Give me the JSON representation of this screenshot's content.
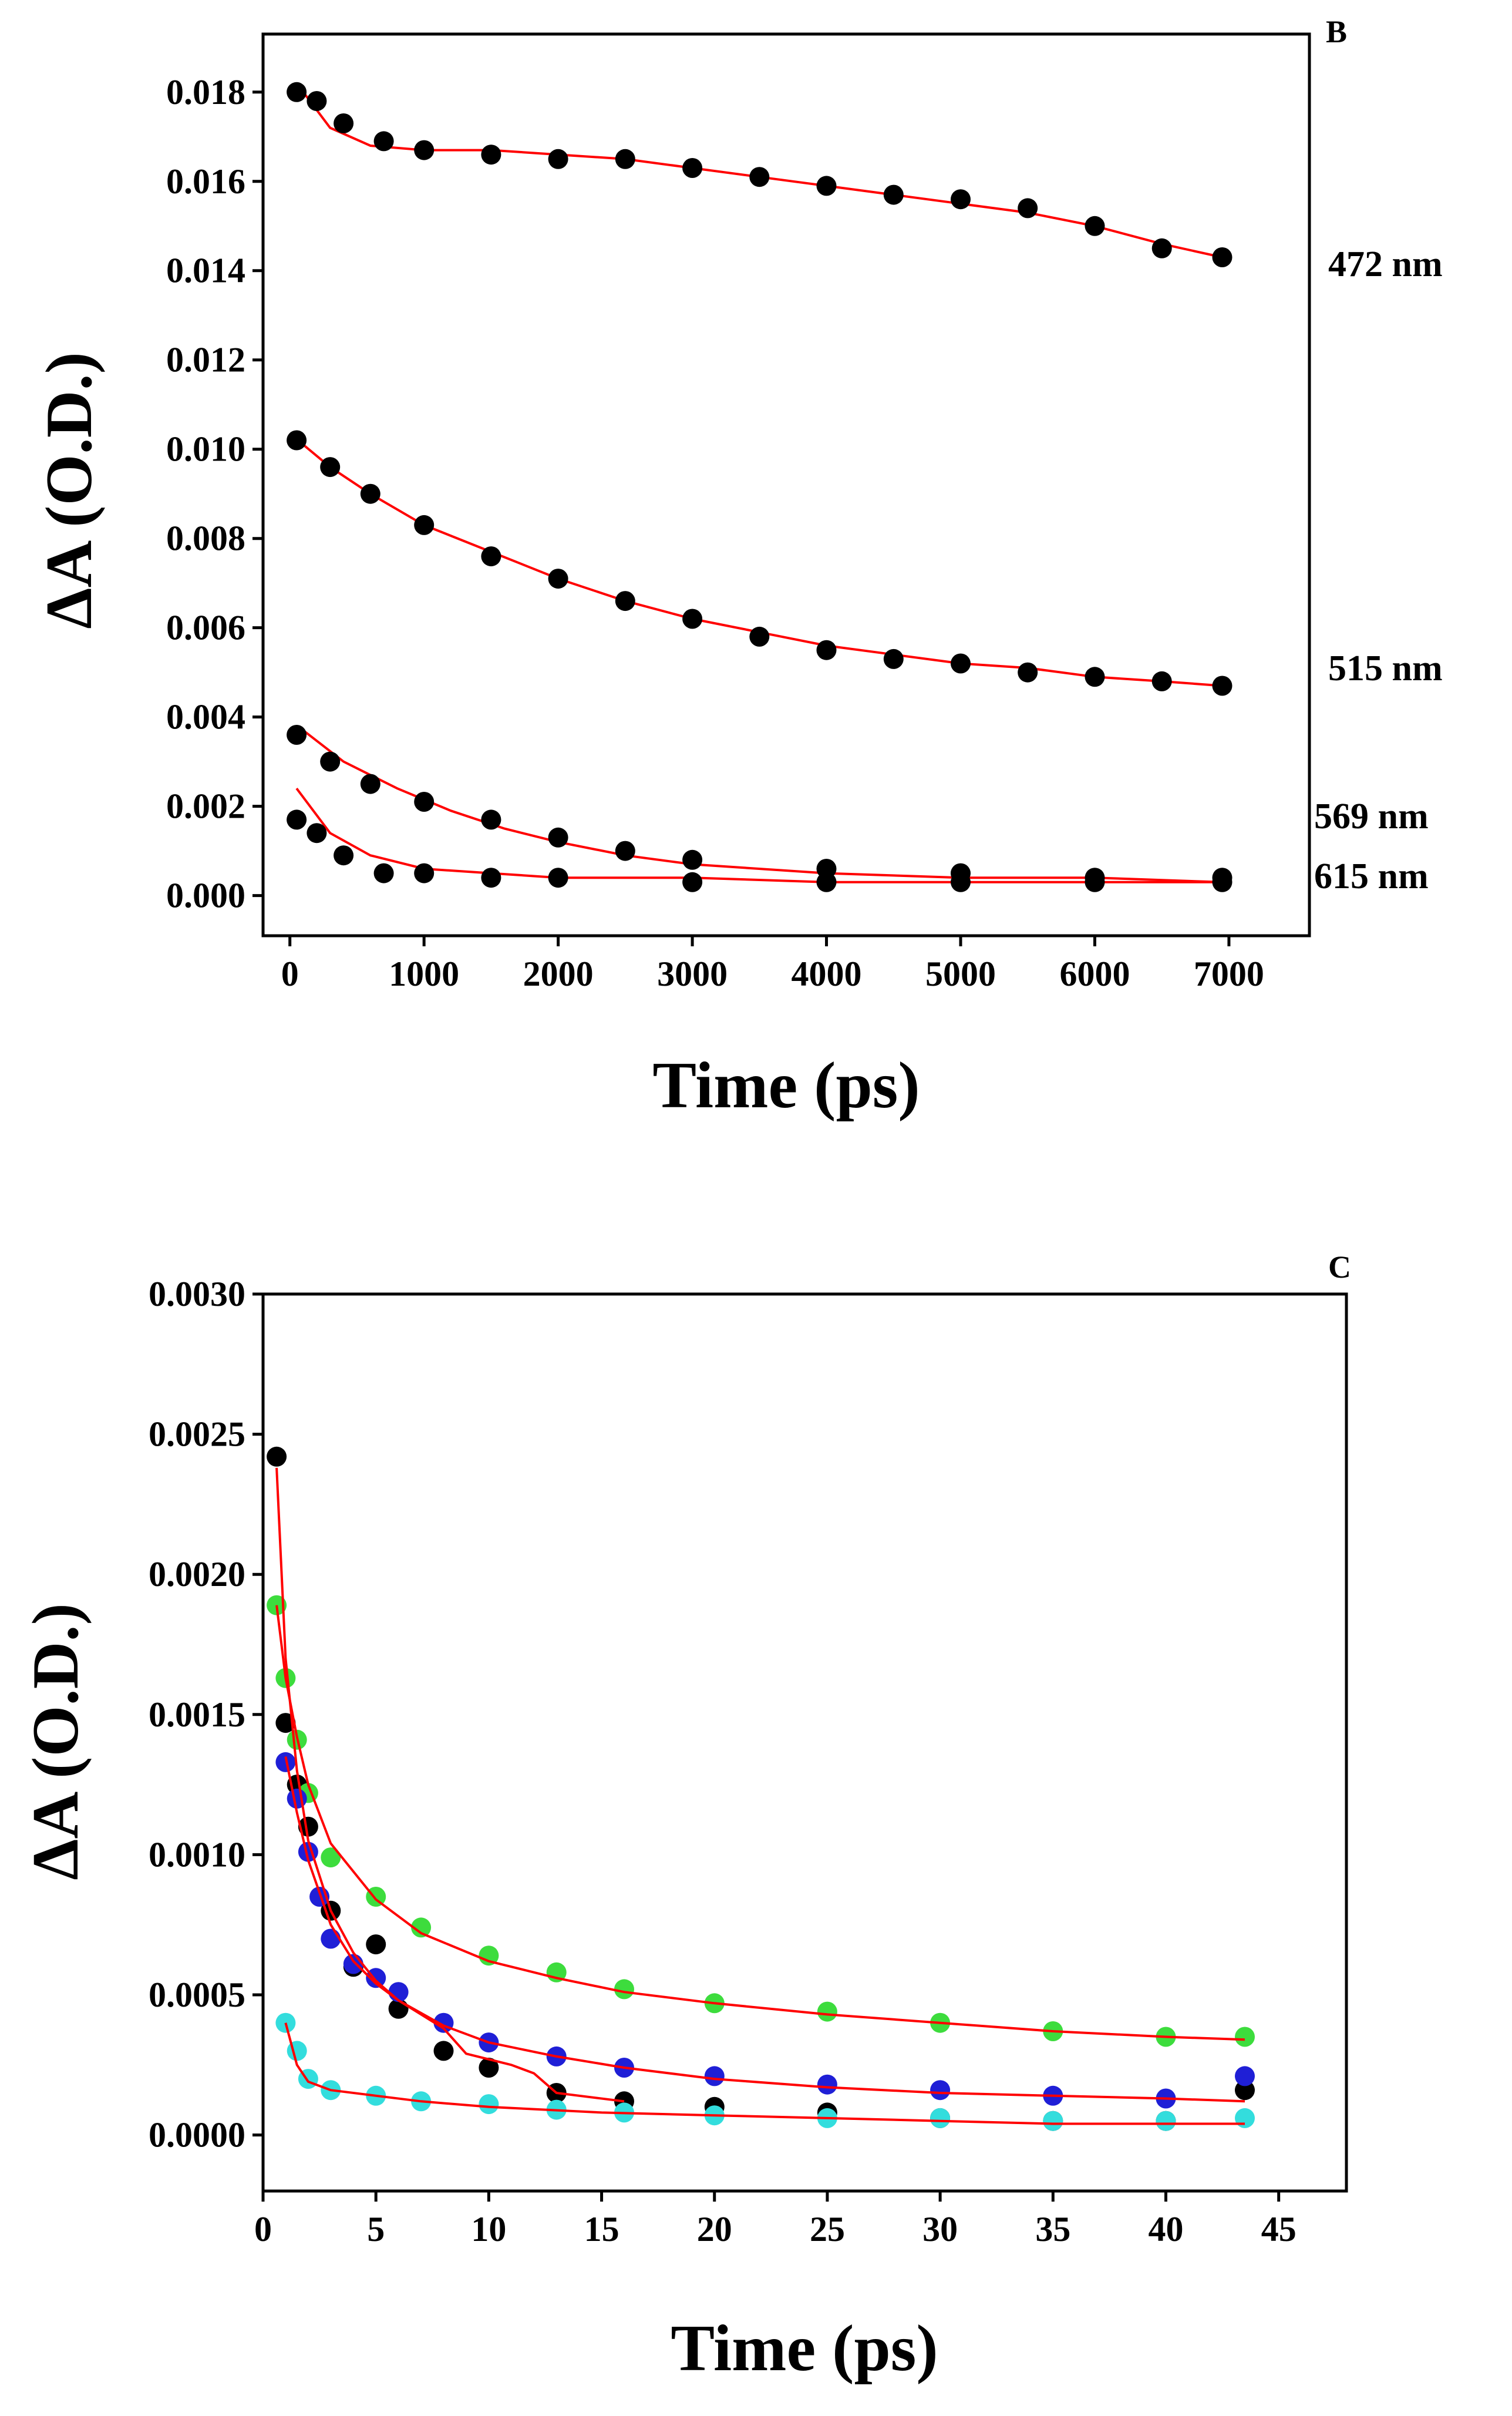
{
  "chart_data": [
    {
      "panel": "B",
      "type": "scatter",
      "xlabel": "Time (ps)",
      "ylabel": "ΔA (O.D.)",
      "xlim": [
        -200,
        7600
      ],
      "ylim": [
        -0.0009,
        0.0193
      ],
      "xticks": [
        "0",
        "1000",
        "2000",
        "3000",
        "4000",
        "5000",
        "6000",
        "7000"
      ],
      "yticks": [
        "0.000",
        "0.002",
        "0.004",
        "0.006",
        "0.008",
        "0.010",
        "0.012",
        "0.014",
        "0.016",
        "0.018"
      ],
      "point_color": "#000000",
      "fit_color": "#ff0000",
      "series": [
        {
          "name": "472 nm",
          "x": [
            50,
            200,
            400,
            700,
            1000,
            1500,
            2000,
            2500,
            3000,
            3500,
            4000,
            4500,
            5000,
            5500,
            6000,
            6500,
            6950
          ],
          "values": [
            0.018,
            0.0178,
            0.0173,
            0.0169,
            0.0167,
            0.0166,
            0.0165,
            0.0165,
            0.0163,
            0.0161,
            0.0159,
            0.0157,
            0.0156,
            0.0154,
            0.015,
            0.0145,
            0.0143
          ]
        },
        {
          "name": "515 nm",
          "x": [
            50,
            300,
            600,
            1000,
            1500,
            2000,
            2500,
            3000,
            3500,
            4000,
            4500,
            5000,
            5500,
            6000,
            6500,
            6950
          ],
          "values": [
            0.0102,
            0.0096,
            0.009,
            0.0083,
            0.0076,
            0.0071,
            0.0066,
            0.0062,
            0.0058,
            0.0055,
            0.0053,
            0.0052,
            0.005,
            0.0049,
            0.0048,
            0.0047
          ]
        },
        {
          "name": "569 nm",
          "x": [
            50,
            300,
            600,
            1000,
            1500,
            2000,
            2500,
            3000,
            4000,
            5000,
            6000,
            6950
          ],
          "values": [
            0.0036,
            0.003,
            0.0025,
            0.0021,
            0.0017,
            0.0013,
            0.001,
            0.0008,
            0.0006,
            0.0005,
            0.0004,
            0.0004
          ]
        },
        {
          "name": "615 nm",
          "x": [
            50,
            200,
            400,
            700,
            1000,
            1500,
            2000,
            3000,
            4000,
            5000,
            6000,
            6950
          ],
          "values": [
            0.0017,
            0.0014,
            0.0009,
            0.0005,
            0.0005,
            0.0004,
            0.0004,
            0.0003,
            0.0003,
            0.0003,
            0.0003,
            0.0003
          ]
        }
      ],
      "fits": [
        {
          "name": "472 nm fit",
          "x": [
            100,
            300,
            600,
            1000,
            1500,
            2000,
            2500,
            3000,
            3500,
            4000,
            4500,
            5000,
            5500,
            6000,
            6500,
            6950
          ],
          "values": [
            0.018,
            0.0172,
            0.0168,
            0.0167,
            0.0167,
            0.0166,
            0.0165,
            0.0163,
            0.0161,
            0.0159,
            0.0157,
            0.0155,
            0.0153,
            0.015,
            0.0146,
            0.0143
          ]
        },
        {
          "name": "515 nm fit",
          "x": [
            100,
            300,
            600,
            1000,
            1500,
            2000,
            2500,
            3000,
            3500,
            4000,
            4500,
            5000,
            5500,
            6000,
            6500,
            6950
          ],
          "values": [
            0.0101,
            0.0096,
            0.009,
            0.0083,
            0.0077,
            0.0071,
            0.0066,
            0.0062,
            0.0059,
            0.0056,
            0.0054,
            0.0052,
            0.0051,
            0.0049,
            0.0048,
            0.0047
          ]
        },
        {
          "name": "569 nm fit",
          "x": [
            100,
            400,
            800,
            1200,
            1600,
            2000,
            2500,
            3000,
            4000,
            5000,
            6000,
            6950
          ],
          "values": [
            0.0037,
            0.003,
            0.0024,
            0.0019,
            0.0015,
            0.0012,
            0.0009,
            0.0007,
            0.0005,
            0.0004,
            0.0004,
            0.0003
          ]
        },
        {
          "name": "615 nm fit",
          "x": [
            50,
            300,
            600,
            1000,
            1500,
            2000,
            3000,
            4000,
            5000,
            6000,
            6950
          ],
          "values": [
            0.0024,
            0.0014,
            0.0009,
            0.0006,
            0.0005,
            0.0004,
            0.0004,
            0.0003,
            0.0003,
            0.0003,
            0.0003
          ]
        }
      ]
    },
    {
      "panel": "C",
      "type": "scatter",
      "xlabel": "Time (ps)",
      "ylabel": "ΔA (O.D.)",
      "xlim": [
        0,
        48
      ],
      "ylim": [
        -0.0002,
        0.003
      ],
      "xticks": [
        "0",
        "5",
        "10",
        "15",
        "20",
        "25",
        "30",
        "35",
        "40",
        "45"
      ],
      "yticks": [
        "0.0000",
        "0.0005",
        "0.0010",
        "0.0015",
        "0.0020",
        "0.0025",
        "0.0030"
      ],
      "series": [
        {
          "name": "black",
          "color": "#000000",
          "x": [
            0.6,
            1.0,
            1.5,
            2.0,
            3.0,
            4.0,
            5.0,
            6.0,
            8.0,
            10.0,
            13.0,
            16.0,
            20.0,
            25.0,
            30.0,
            35.0,
            40.0,
            43.5
          ],
          "values": [
            0.00242,
            0.00147,
            0.00125,
            0.0011,
            0.0008,
            0.0006,
            0.00068,
            0.00045,
            0.0003,
            0.00024,
            0.00015,
            0.00012,
            0.0001,
            8e-05,
            6e-05,
            5e-05,
            5e-05,
            0.00016
          ]
        },
        {
          "name": "green",
          "color": "#3ddc3d",
          "x": [
            0.6,
            1.0,
            1.5,
            2.0,
            3.0,
            5.0,
            7.0,
            10.0,
            13.0,
            16.0,
            20.0,
            25.0,
            30.0,
            35.0,
            40.0,
            43.5
          ],
          "values": [
            0.00189,
            0.00163,
            0.00141,
            0.00122,
            0.00099,
            0.00085,
            0.00074,
            0.00064,
            0.00058,
            0.00052,
            0.00047,
            0.00044,
            0.0004,
            0.00037,
            0.00035,
            0.00035
          ]
        },
        {
          "name": "blue",
          "color": "#1f1fd6",
          "x": [
            1.0,
            1.5,
            2.0,
            2.5,
            3.0,
            4.0,
            5.0,
            6.0,
            8.0,
            10.0,
            13.0,
            16.0,
            20.0,
            25.0,
            30.0,
            35.0,
            40.0,
            43.5
          ],
          "values": [
            0.00133,
            0.0012,
            0.00101,
            0.00085,
            0.0007,
            0.00061,
            0.00056,
            0.00051,
            0.0004,
            0.00033,
            0.00028,
            0.00024,
            0.00021,
            0.00018,
            0.00016,
            0.00014,
            0.00013,
            0.00021
          ]
        },
        {
          "name": "cyan",
          "color": "#33dddd",
          "x": [
            1.0,
            1.5,
            2.0,
            3.0,
            5.0,
            7.0,
            10.0,
            13.0,
            16.0,
            20.0,
            25.0,
            30.0,
            35.0,
            40.0,
            43.5
          ],
          "values": [
            0.0004,
            0.0003,
            0.0002,
            0.00016,
            0.00014,
            0.00012,
            0.00011,
            9e-05,
            8e-05,
            7e-05,
            6e-05,
            6e-05,
            5e-05,
            5e-05,
            6e-05
          ]
        }
      ],
      "fits": [
        {
          "name": "black fit",
          "x": [
            0.6,
            1.0,
            1.5,
            2.0,
            3.0,
            4.0,
            5.0,
            6.0,
            8.0,
            9.0,
            11.0,
            12.0,
            13.0,
            16.0
          ],
          "values": [
            0.00238,
            0.0017,
            0.0013,
            0.00105,
            0.0008,
            0.00065,
            0.00055,
            0.00048,
            0.00038,
            0.00029,
            0.00025,
            0.00022,
            0.00015,
            0.00012
          ]
        },
        {
          "name": "green fit",
          "x": [
            0.6,
            1.0,
            1.5,
            2.0,
            3.0,
            5.0,
            7.0,
            10.0,
            13.0,
            16.0,
            20.0,
            25.0,
            30.0,
            35.0,
            40.0,
            43.5
          ],
          "values": [
            0.00189,
            0.00163,
            0.00142,
            0.00125,
            0.00104,
            0.00084,
            0.00072,
            0.00062,
            0.00056,
            0.00051,
            0.00047,
            0.00043,
            0.0004,
            0.00037,
            0.00035,
            0.00034
          ]
        },
        {
          "name": "blue fit",
          "x": [
            1.0,
            1.5,
            2.0,
            3.0,
            4.0,
            5.0,
            6.0,
            8.0,
            10.0,
            13.0,
            16.0,
            20.0,
            25.0,
            30.0,
            35.0,
            40.0,
            43.5
          ],
          "values": [
            0.00135,
            0.00115,
            0.00098,
            0.00075,
            0.00062,
            0.00054,
            0.00048,
            0.00039,
            0.00033,
            0.00028,
            0.00024,
            0.0002,
            0.00017,
            0.00015,
            0.00014,
            0.00013,
            0.00012
          ]
        },
        {
          "name": "cyan fit",
          "x": [
            1.0,
            1.5,
            2.0,
            3.0,
            5.0,
            7.0,
            10.0,
            15.0,
            20.0,
            25.0,
            30.0,
            35.0,
            40.0,
            43.5
          ],
          "values": [
            0.0004,
            0.00025,
            0.00019,
            0.00016,
            0.00014,
            0.00012,
            0.0001,
            8e-05,
            7e-05,
            6e-05,
            5e-05,
            4e-05,
            4e-05,
            4e-05
          ]
        }
      ]
    }
  ]
}
